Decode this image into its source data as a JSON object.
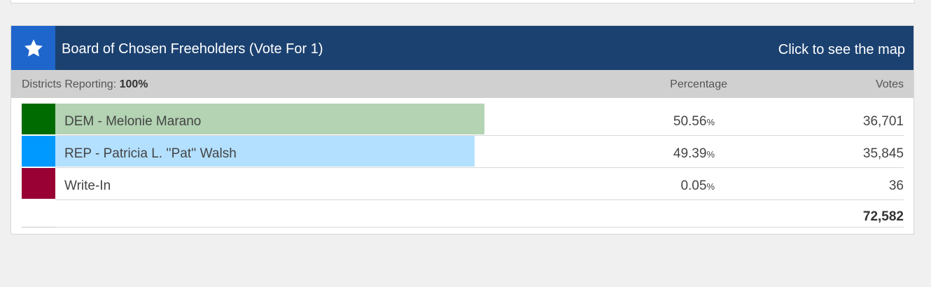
{
  "race": {
    "title": "Board of Chosen Freeholders (Vote For 1)",
    "map_link": "Click to see the map",
    "reporting_label": "Districts Reporting:",
    "reporting_value": "100%",
    "col_percentage": "Percentage",
    "col_votes": "Votes",
    "total_votes": "72,582",
    "candidates": [
      {
        "name": "DEM - Melonie Marano",
        "percent": "50.56",
        "percent_sign": "%",
        "votes": "36,701",
        "share": 0.5056,
        "swatch_color": "#006b00",
        "bar_color": "#b3d3b3"
      },
      {
        "name": "REP - Patricia L. ''Pat'' Walsh",
        "percent": "49.39",
        "percent_sign": "%",
        "votes": "35,845",
        "share": 0.4939,
        "swatch_color": "#0099ff",
        "bar_color": "#b3e0ff"
      },
      {
        "name": "Write-In",
        "percent": "0.05",
        "percent_sign": "%",
        "votes": "36",
        "share": 0.0005,
        "swatch_color": "#990033",
        "bar_color": "#e0b3c2"
      }
    ]
  },
  "icons": {
    "header": "star-icon"
  }
}
